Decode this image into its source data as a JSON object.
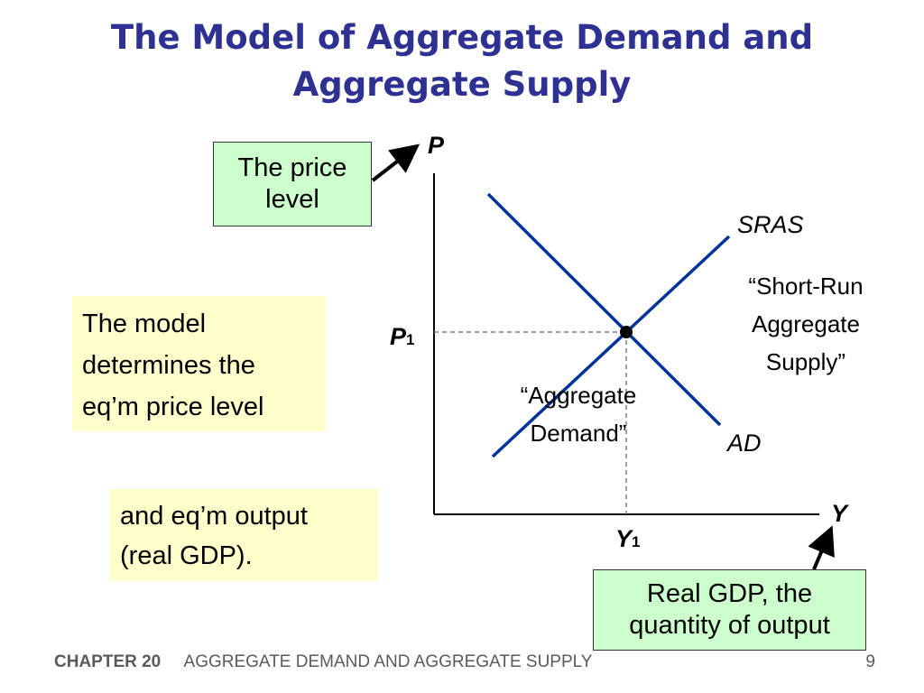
{
  "slide": {
    "title_lines": [
      "The Model of Aggregate Demand and",
      "Aggregate Supply"
    ]
  },
  "diagram": {
    "axis_labels": {
      "y": "P",
      "x": "Y"
    },
    "equilibrium_labels": {
      "price_main": "P",
      "price_sub": "1",
      "output_main": "Y",
      "output_sub": "1"
    },
    "curves": [
      {
        "id": "sras",
        "label": "SRAS",
        "description": [
          "“Short-Run",
          "Aggregate",
          "Supply”"
        ]
      },
      {
        "id": "ad",
        "label": "AD",
        "description": [
          "“Aggregate",
          "Demand”"
        ]
      }
    ],
    "colors": {
      "curve": "#003399",
      "axis": "#000000",
      "guide": "#7f7f7f",
      "title": "#2e3192"
    }
  },
  "callouts": {
    "price_level": [
      "The price",
      "level"
    ],
    "output": [
      "Real GDP,  the",
      "quantity of output"
    ],
    "model": [
      "The model",
      "determines the",
      "eq’m price level"
    ],
    "output_note": [
      "and eq’m output",
      "(real GDP)."
    ]
  },
  "footer": {
    "chapter": "CHAPTER 20",
    "subject": "AGGREGATE DEMAND AND AGGREGATE SUPPLY",
    "page": "9"
  }
}
